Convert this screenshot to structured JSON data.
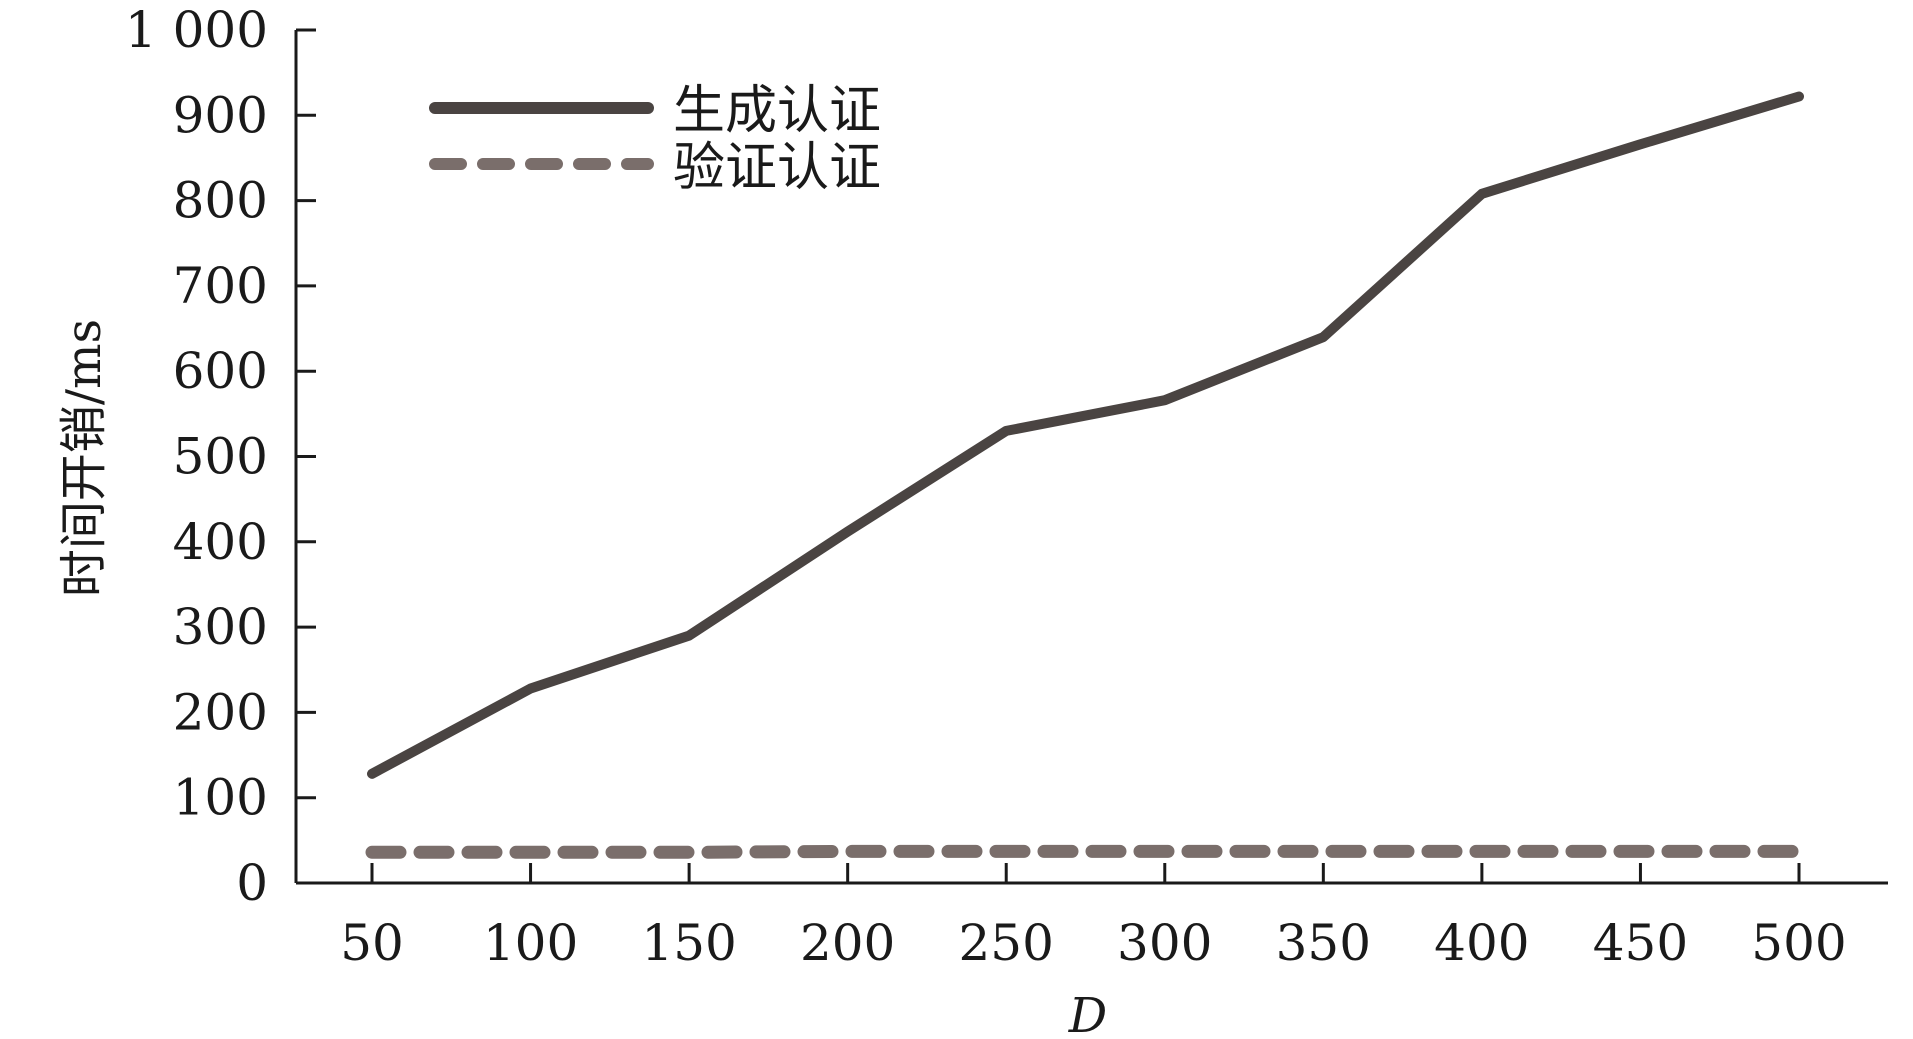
{
  "chart_data": {
    "type": "line",
    "title": "",
    "xlabel": "D",
    "ylabel": "时间开销/ms",
    "x": [
      50,
      100,
      150,
      200,
      250,
      300,
      350,
      400,
      450,
      500
    ],
    "x_tick_labels": [
      "50",
      "100",
      "150",
      "200",
      "250",
      "300",
      "350",
      "400",
      "450",
      "500"
    ],
    "y_tick_labels": [
      "0",
      "100",
      "200",
      "300",
      "400",
      "500",
      "600",
      "700",
      "800",
      "900",
      "1 000"
    ],
    "y_ticks": [
      0,
      100,
      200,
      300,
      400,
      500,
      600,
      700,
      800,
      900,
      1000
    ],
    "ylim": [
      0,
      1000
    ],
    "grid": false,
    "legend_position": "top-left",
    "series": [
      {
        "name": "生成认证",
        "values": [
          128,
          228,
          290,
          412,
          530,
          566,
          640,
          808,
          866,
          922
        ],
        "color": "#4a4442",
        "style": "solid"
      },
      {
        "name": "验证认证",
        "values": [
          36,
          36,
          36,
          37,
          37,
          37,
          37,
          37,
          37,
          37
        ],
        "color": "#7a6e6b",
        "style": "dashed"
      }
    ]
  }
}
